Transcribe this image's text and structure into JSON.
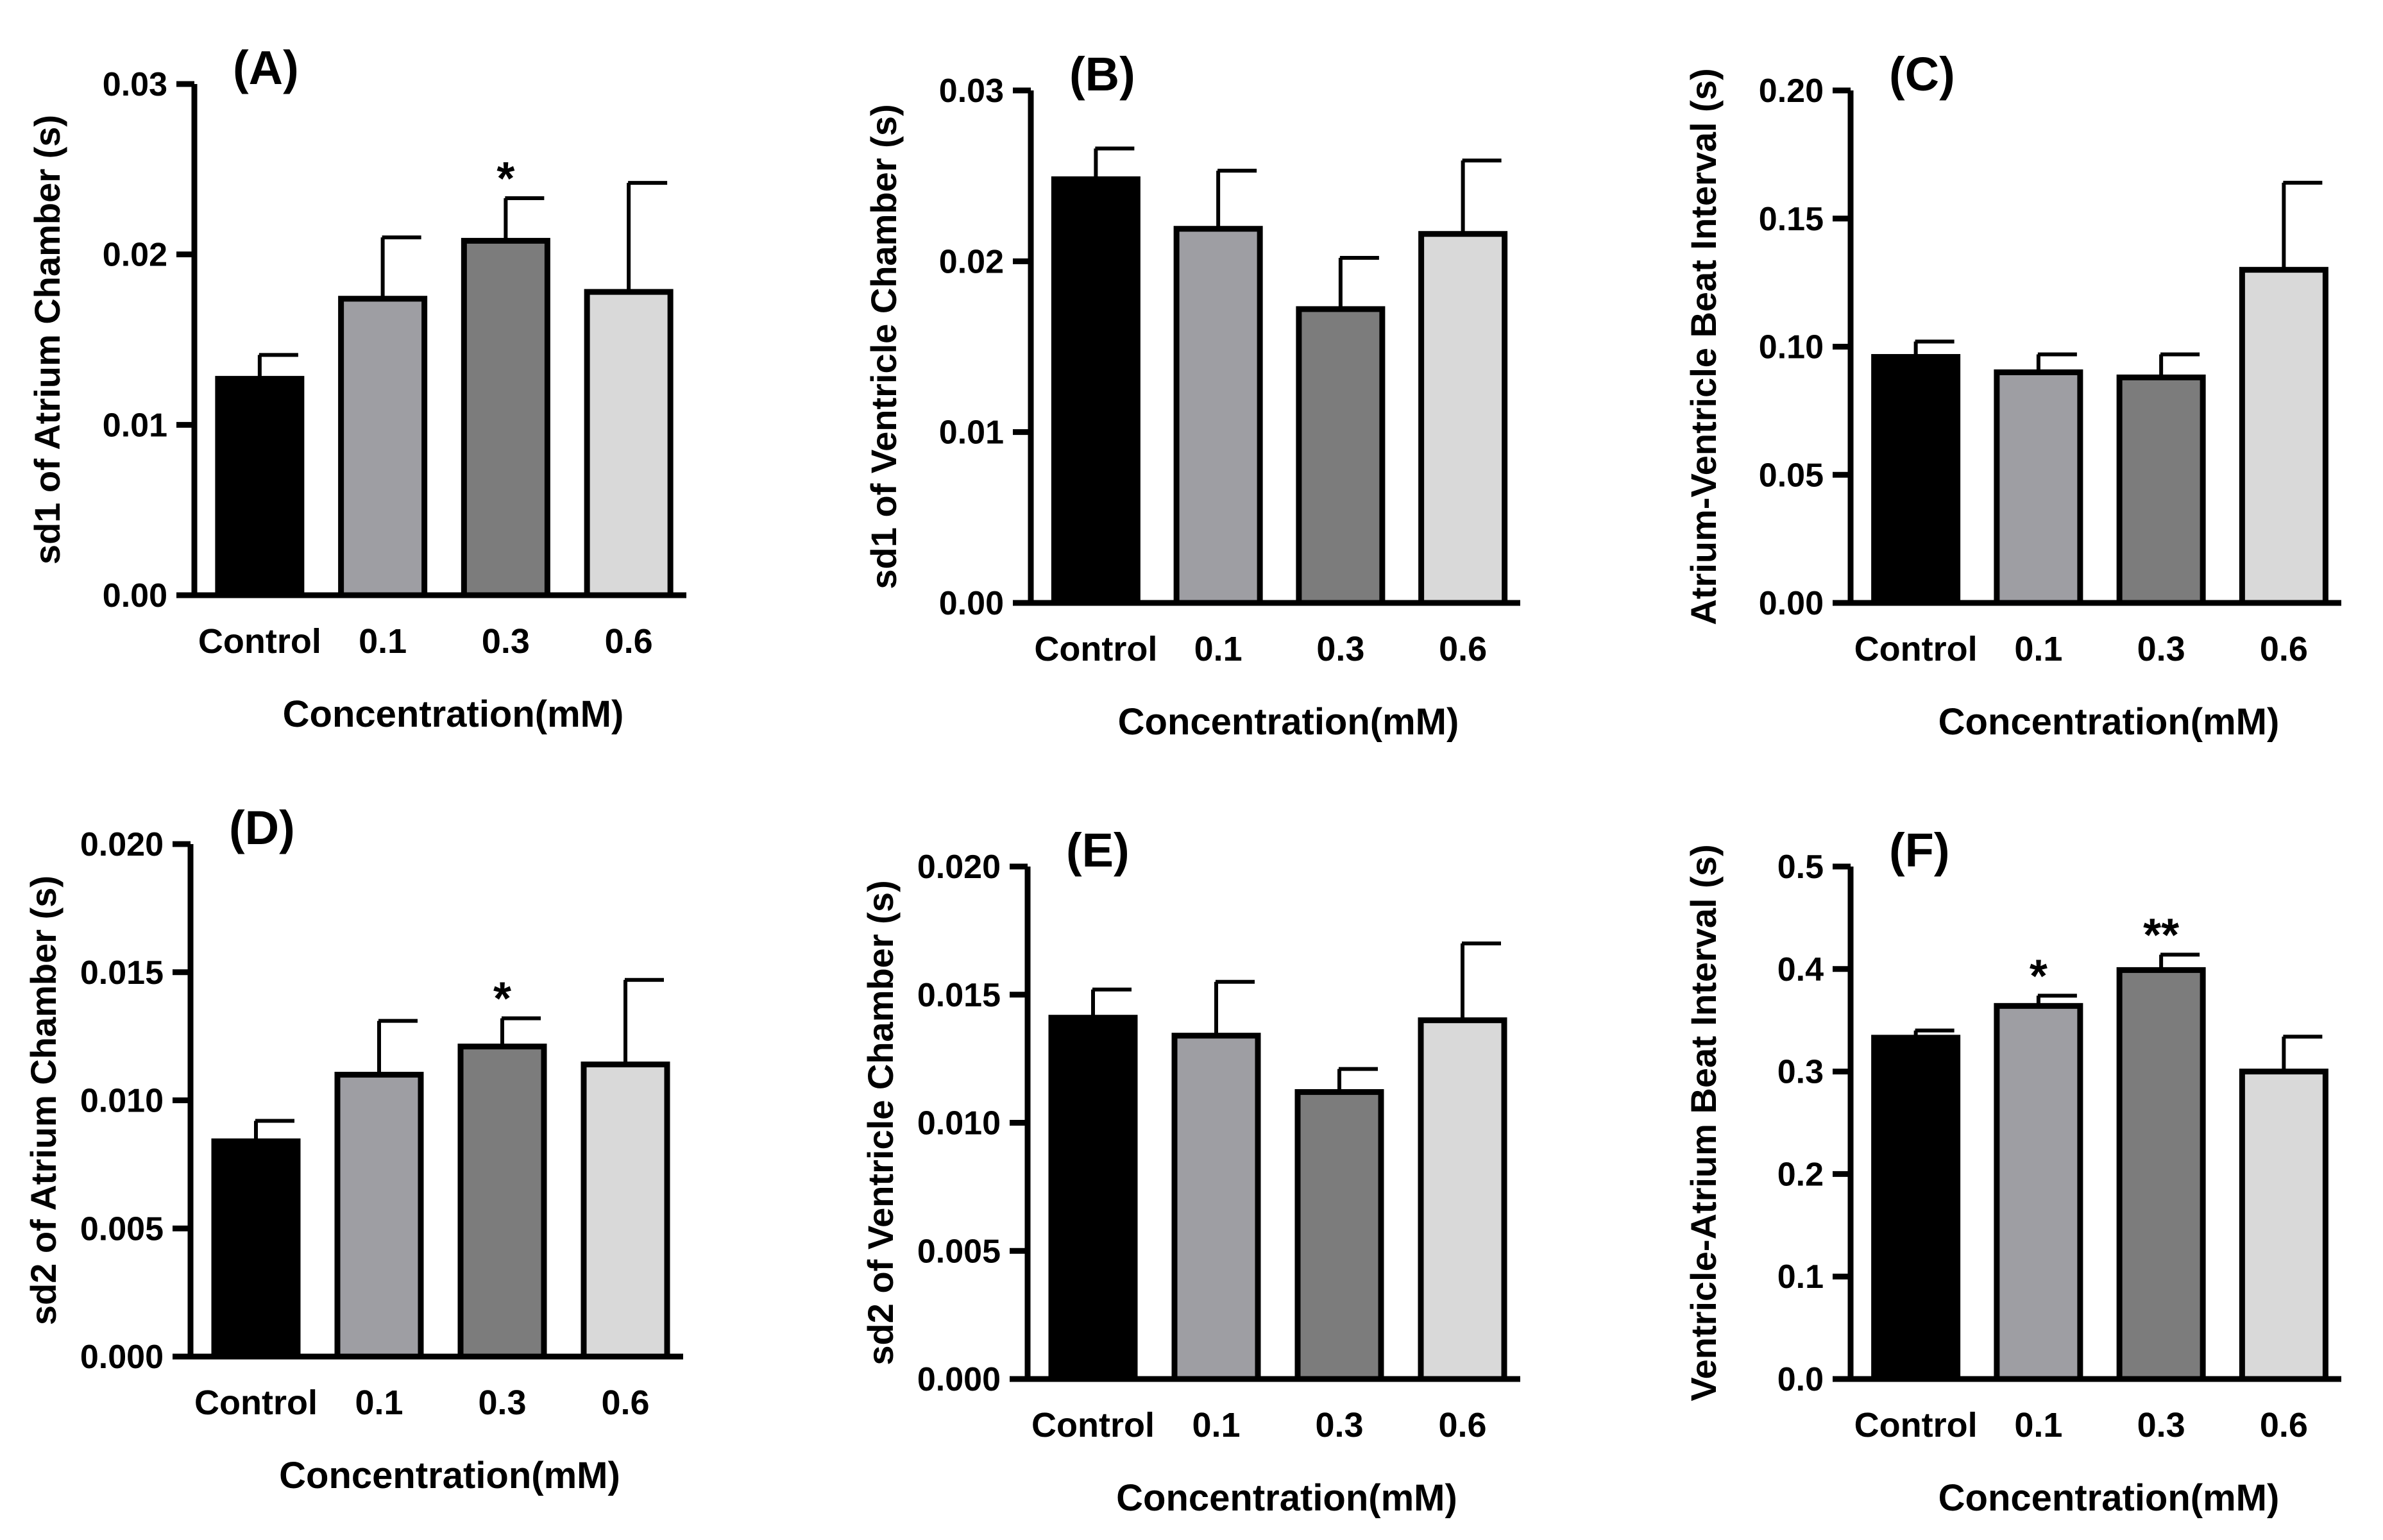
{
  "figure": {
    "bar_colors": [
      "#000000",
      "#9e9ea3",
      "#7c7c7c",
      "#d9d9d9"
    ],
    "outline_color": "#000000"
  },
  "chart_data": [
    {
      "type": "bar",
      "panel_label": "(A)",
      "ylabel": "sd1 of Atrium Chamber (s)",
      "xlabel": "Concentration(mM)",
      "categories": [
        "Control",
        "0.1",
        "0.3",
        "0.6"
      ],
      "values": [
        0.0127,
        0.0174,
        0.0208,
        0.0178
      ],
      "errors": [
        0.0014,
        0.0036,
        0.0025,
        0.0064
      ],
      "significance": [
        "",
        "",
        "*",
        ""
      ],
      "ylim": [
        0,
        0.03
      ],
      "yticks": [
        "0.00",
        "0.01",
        "0.02",
        "0.03"
      ]
    },
    {
      "type": "bar",
      "panel_label": "(B)",
      "ylabel": "sd1 of Ventricle Chamber (s)",
      "xlabel": "Concentration(mM)",
      "categories": [
        "Control",
        "0.1",
        "0.3",
        "0.6"
      ],
      "values": [
        0.0248,
        0.0219,
        0.0172,
        0.0216
      ],
      "errors": [
        0.0018,
        0.0034,
        0.003,
        0.0043
      ],
      "significance": [
        "",
        "",
        "",
        ""
      ],
      "ylim": [
        0,
        0.03
      ],
      "yticks": [
        "0.00",
        "0.01",
        "0.02",
        "0.03"
      ]
    },
    {
      "type": "bar",
      "panel_label": "(C)",
      "ylabel": "Atrium-Ventricle Beat Interval (s)",
      "xlabel": "Concentration(mM)",
      "categories": [
        "Control",
        "0.1",
        "0.3",
        "0.6"
      ],
      "values": [
        0.096,
        0.09,
        0.088,
        0.13
      ],
      "errors": [
        0.006,
        0.007,
        0.009,
        0.034
      ],
      "significance": [
        "",
        "",
        "",
        ""
      ],
      "ylim": [
        0,
        0.2
      ],
      "yticks": [
        "0.00",
        "0.05",
        "0.10",
        "0.15",
        "0.20"
      ]
    },
    {
      "type": "bar",
      "panel_label": "(D)",
      "ylabel": "sd2 of Atrium Chamber (s)",
      "xlabel": "Concentration(mM)",
      "categories": [
        "Control",
        "0.1",
        "0.3",
        "0.6"
      ],
      "values": [
        0.0084,
        0.011,
        0.0121,
        0.0114
      ],
      "errors": [
        0.0008,
        0.0021,
        0.0011,
        0.0033
      ],
      "significance": [
        "",
        "",
        "*",
        ""
      ],
      "ylim": [
        0,
        0.02
      ],
      "yticks": [
        "0.000",
        "0.005",
        "0.010",
        "0.015",
        "0.020"
      ]
    },
    {
      "type": "bar",
      "panel_label": "(E)",
      "ylabel": "sd2 of  Ventricle Chamber (s)",
      "xlabel": "Concentration(mM)",
      "categories": [
        "Control",
        "0.1",
        "0.3",
        "0.6"
      ],
      "values": [
        0.0141,
        0.0134,
        0.0112,
        0.014
      ],
      "errors": [
        0.0011,
        0.0021,
        0.0009,
        0.003
      ],
      "significance": [
        "",
        "",
        "",
        ""
      ],
      "ylim": [
        0,
        0.02
      ],
      "yticks": [
        "0.000",
        "0.005",
        "0.010",
        "0.015",
        "0.020"
      ]
    },
    {
      "type": "bar",
      "panel_label": "(F)",
      "ylabel": "Ventricle-Atrium Beat Interval (s)",
      "xlabel": "Concentration(mM)",
      "categories": [
        "Control",
        "0.1",
        "0.3",
        "0.6"
      ],
      "values": [
        0.333,
        0.364,
        0.399,
        0.3
      ],
      "errors": [
        0.007,
        0.01,
        0.015,
        0.034
      ],
      "significance": [
        "",
        "*",
        "**",
        ""
      ],
      "ylim": [
        0,
        0.5
      ],
      "yticks": [
        "0.0",
        "0.1",
        "0.2",
        "0.3",
        "0.4",
        "0.5"
      ]
    }
  ]
}
